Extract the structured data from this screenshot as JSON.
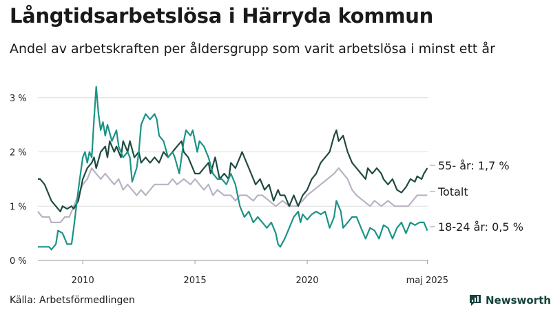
{
  "title": "Långtidsarbetslösa i Härryda kommun",
  "subtitle": "Andel av arbetskraften per åldersgrupp som varit arbetslösa i minst ett år",
  "source": "Källa: Arbetsförmedlingen",
  "brand": {
    "name": "Newsworthy",
    "icon": "newsworthy-chart-icon",
    "color": "#16423d"
  },
  "chart_data": {
    "type": "line",
    "x_unit": "year",
    "xlim": [
      2008.0,
      2025.4
    ],
    "ylim": [
      0,
      3.2
    ],
    "y_ticks": [
      {
        "value": 0,
        "label": "0 %"
      },
      {
        "value": 1,
        "label": "1 %"
      },
      {
        "value": 2,
        "label": "2 %"
      },
      {
        "value": 3,
        "label": "3 %"
      }
    ],
    "x_ticks": [
      {
        "value": 2010,
        "label": "2010"
      },
      {
        "value": 2015,
        "label": "2015"
      },
      {
        "value": 2020,
        "label": "2020"
      },
      {
        "value": 2025.35,
        "label": "maj 2025"
      }
    ],
    "grid": "horizontal",
    "series": [
      {
        "name": "Totalt",
        "end_label": "Totalt",
        "color": "#b9b2c4",
        "points": [
          [
            2008.0,
            0.9
          ],
          [
            2008.2,
            0.8
          ],
          [
            2008.5,
            0.8
          ],
          [
            2008.6,
            0.7
          ],
          [
            2009.0,
            0.7
          ],
          [
            2009.2,
            0.8
          ],
          [
            2009.4,
            0.8
          ],
          [
            2009.6,
            1.0
          ],
          [
            2009.8,
            1.2
          ],
          [
            2010.0,
            1.4
          ],
          [
            2010.2,
            1.5
          ],
          [
            2010.4,
            1.7
          ],
          [
            2010.6,
            1.6
          ],
          [
            2010.8,
            1.5
          ],
          [
            2011.0,
            1.6
          ],
          [
            2011.2,
            1.5
          ],
          [
            2011.4,
            1.4
          ],
          [
            2011.6,
            1.5
          ],
          [
            2011.8,
            1.3
          ],
          [
            2012.0,
            1.4
          ],
          [
            2012.2,
            1.3
          ],
          [
            2012.4,
            1.2
          ],
          [
            2012.6,
            1.3
          ],
          [
            2012.8,
            1.2
          ],
          [
            2013.0,
            1.3
          ],
          [
            2013.2,
            1.4
          ],
          [
            2013.5,
            1.4
          ],
          [
            2013.8,
            1.4
          ],
          [
            2014.0,
            1.5
          ],
          [
            2014.2,
            1.4
          ],
          [
            2014.5,
            1.5
          ],
          [
            2014.8,
            1.4
          ],
          [
            2015.0,
            1.5
          ],
          [
            2015.2,
            1.4
          ],
          [
            2015.4,
            1.3
          ],
          [
            2015.6,
            1.4
          ],
          [
            2015.8,
            1.2
          ],
          [
            2016.0,
            1.3
          ],
          [
            2016.3,
            1.2
          ],
          [
            2016.6,
            1.2
          ],
          [
            2016.8,
            1.1
          ],
          [
            2017.0,
            1.2
          ],
          [
            2017.3,
            1.2
          ],
          [
            2017.6,
            1.1
          ],
          [
            2017.8,
            1.2
          ],
          [
            2018.0,
            1.2
          ],
          [
            2018.3,
            1.1
          ],
          [
            2018.6,
            1.0
          ],
          [
            2018.9,
            1.1
          ],
          [
            2019.2,
            1.0
          ],
          [
            2019.5,
            1.0
          ],
          [
            2019.8,
            1.1
          ],
          [
            2020.0,
            1.2
          ],
          [
            2020.3,
            1.3
          ],
          [
            2020.6,
            1.4
          ],
          [
            2020.9,
            1.5
          ],
          [
            2021.2,
            1.6
          ],
          [
            2021.4,
            1.7
          ],
          [
            2021.6,
            1.6
          ],
          [
            2021.8,
            1.5
          ],
          [
            2022.0,
            1.3
          ],
          [
            2022.2,
            1.2
          ],
          [
            2022.5,
            1.1
          ],
          [
            2022.8,
            1.0
          ],
          [
            2023.0,
            1.1
          ],
          [
            2023.3,
            1.0
          ],
          [
            2023.6,
            1.1
          ],
          [
            2023.9,
            1.0
          ],
          [
            2024.2,
            1.0
          ],
          [
            2024.5,
            1.0
          ],
          [
            2024.7,
            1.1
          ],
          [
            2024.9,
            1.2
          ],
          [
            2025.2,
            1.2
          ],
          [
            2025.35,
            1.2
          ]
        ]
      },
      {
        "name": "55- år",
        "end_label": "55- år: 1,7 %",
        "color": "#1f4a40",
        "points": [
          [
            2008.0,
            1.5
          ],
          [
            2008.1,
            1.5
          ],
          [
            2008.3,
            1.4
          ],
          [
            2008.4,
            1.3
          ],
          [
            2008.5,
            1.2
          ],
          [
            2008.6,
            1.1
          ],
          [
            2008.8,
            1.0
          ],
          [
            2009.0,
            0.9
          ],
          [
            2009.1,
            1.0
          ],
          [
            2009.3,
            0.95
          ],
          [
            2009.5,
            1.0
          ],
          [
            2009.6,
            0.95
          ],
          [
            2009.8,
            1.1
          ],
          [
            2010.0,
            1.5
          ],
          [
            2010.2,
            1.7
          ],
          [
            2010.4,
            1.8
          ],
          [
            2010.5,
            1.9
          ],
          [
            2010.6,
            1.7
          ],
          [
            2010.8,
            2.0
          ],
          [
            2011.0,
            2.1
          ],
          [
            2011.1,
            1.9
          ],
          [
            2011.2,
            2.2
          ],
          [
            2011.4,
            2.0
          ],
          [
            2011.5,
            2.1
          ],
          [
            2011.7,
            1.9
          ],
          [
            2011.8,
            2.2
          ],
          [
            2012.0,
            2.0
          ],
          [
            2012.1,
            2.2
          ],
          [
            2012.3,
            1.9
          ],
          [
            2012.5,
            2.0
          ],
          [
            2012.6,
            1.8
          ],
          [
            2012.8,
            1.9
          ],
          [
            2013.0,
            1.8
          ],
          [
            2013.2,
            1.9
          ],
          [
            2013.4,
            1.8
          ],
          [
            2013.6,
            2.0
          ],
          [
            2013.8,
            1.9
          ],
          [
            2014.0,
            2.0
          ],
          [
            2014.2,
            2.1
          ],
          [
            2014.4,
            2.2
          ],
          [
            2014.5,
            2.0
          ],
          [
            2014.7,
            1.9
          ],
          [
            2014.9,
            1.7
          ],
          [
            2015.0,
            1.6
          ],
          [
            2015.2,
            1.6
          ],
          [
            2015.4,
            1.7
          ],
          [
            2015.6,
            1.8
          ],
          [
            2015.7,
            1.6
          ],
          [
            2015.9,
            1.9
          ],
          [
            2016.1,
            1.5
          ],
          [
            2016.3,
            1.6
          ],
          [
            2016.5,
            1.5
          ],
          [
            2016.6,
            1.8
          ],
          [
            2016.8,
            1.7
          ],
          [
            2017.0,
            1.9
          ],
          [
            2017.1,
            2.0
          ],
          [
            2017.3,
            1.8
          ],
          [
            2017.5,
            1.6
          ],
          [
            2017.7,
            1.4
          ],
          [
            2017.9,
            1.5
          ],
          [
            2018.1,
            1.3
          ],
          [
            2018.3,
            1.4
          ],
          [
            2018.5,
            1.1
          ],
          [
            2018.7,
            1.3
          ],
          [
            2018.8,
            1.2
          ],
          [
            2019.0,
            1.2
          ],
          [
            2019.2,
            1.0
          ],
          [
            2019.4,
            1.2
          ],
          [
            2019.6,
            1.0
          ],
          [
            2019.8,
            1.2
          ],
          [
            2020.0,
            1.3
          ],
          [
            2020.2,
            1.5
          ],
          [
            2020.4,
            1.6
          ],
          [
            2020.6,
            1.8
          ],
          [
            2020.8,
            1.9
          ],
          [
            2021.0,
            2.0
          ],
          [
            2021.2,
            2.3
          ],
          [
            2021.3,
            2.4
          ],
          [
            2021.4,
            2.2
          ],
          [
            2021.6,
            2.3
          ],
          [
            2021.8,
            2.0
          ],
          [
            2022.0,
            1.8
          ],
          [
            2022.2,
            1.7
          ],
          [
            2022.4,
            1.6
          ],
          [
            2022.6,
            1.5
          ],
          [
            2022.7,
            1.7
          ],
          [
            2022.9,
            1.6
          ],
          [
            2023.1,
            1.7
          ],
          [
            2023.3,
            1.6
          ],
          [
            2023.4,
            1.5
          ],
          [
            2023.6,
            1.4
          ],
          [
            2023.8,
            1.5
          ],
          [
            2024.0,
            1.3
          ],
          [
            2024.2,
            1.25
          ],
          [
            2024.4,
            1.35
          ],
          [
            2024.6,
            1.5
          ],
          [
            2024.8,
            1.45
          ],
          [
            2024.9,
            1.55
          ],
          [
            2025.1,
            1.5
          ],
          [
            2025.2,
            1.6
          ],
          [
            2025.35,
            1.7
          ]
        ]
      },
      {
        "name": "18-24 år",
        "end_label": "18-24 år: 0,5 %",
        "color": "#1a9385",
        "points": [
          [
            2008.0,
            0.25
          ],
          [
            2008.5,
            0.25
          ],
          [
            2008.6,
            0.2
          ],
          [
            2008.8,
            0.3
          ],
          [
            2008.9,
            0.55
          ],
          [
            2009.1,
            0.5
          ],
          [
            2009.3,
            0.3
          ],
          [
            2009.5,
            0.3
          ],
          [
            2009.6,
            0.6
          ],
          [
            2009.8,
            1.3
          ],
          [
            2009.9,
            1.6
          ],
          [
            2010.0,
            1.9
          ],
          [
            2010.1,
            2.0
          ],
          [
            2010.2,
            1.8
          ],
          [
            2010.3,
            2.0
          ],
          [
            2010.4,
            1.9
          ],
          [
            2010.5,
            2.6
          ],
          [
            2010.6,
            3.2
          ],
          [
            2010.7,
            2.7
          ],
          [
            2010.8,
            2.4
          ],
          [
            2010.9,
            2.55
          ],
          [
            2011.0,
            2.3
          ],
          [
            2011.1,
            2.5
          ],
          [
            2011.3,
            2.2
          ],
          [
            2011.5,
            2.4
          ],
          [
            2011.6,
            2.1
          ],
          [
            2011.8,
            1.9
          ],
          [
            2012.0,
            2.0
          ],
          [
            2012.1,
            1.9
          ],
          [
            2012.2,
            1.45
          ],
          [
            2012.4,
            1.7
          ],
          [
            2012.5,
            2.0
          ],
          [
            2012.6,
            2.5
          ],
          [
            2012.8,
            2.7
          ],
          [
            2013.0,
            2.6
          ],
          [
            2013.2,
            2.7
          ],
          [
            2013.3,
            2.6
          ],
          [
            2013.4,
            2.3
          ],
          [
            2013.6,
            2.2
          ],
          [
            2013.8,
            1.9
          ],
          [
            2014.0,
            2.0
          ],
          [
            2014.1,
            1.9
          ],
          [
            2014.3,
            1.6
          ],
          [
            2014.5,
            2.2
          ],
          [
            2014.6,
            2.4
          ],
          [
            2014.8,
            2.3
          ],
          [
            2014.9,
            2.4
          ],
          [
            2015.1,
            2.0
          ],
          [
            2015.2,
            2.2
          ],
          [
            2015.4,
            2.1
          ],
          [
            2015.6,
            1.9
          ],
          [
            2015.8,
            1.6
          ],
          [
            2016.0,
            1.5
          ],
          [
            2016.2,
            1.5
          ],
          [
            2016.4,
            1.4
          ],
          [
            2016.6,
            1.6
          ],
          [
            2016.8,
            1.4
          ],
          [
            2017.0,
            1.0
          ],
          [
            2017.2,
            0.8
          ],
          [
            2017.4,
            0.9
          ],
          [
            2017.6,
            0.7
          ],
          [
            2017.8,
            0.8
          ],
          [
            2018.0,
            0.7
          ],
          [
            2018.2,
            0.6
          ],
          [
            2018.4,
            0.7
          ],
          [
            2018.6,
            0.5
          ],
          [
            2018.7,
            0.3
          ],
          [
            2018.8,
            0.25
          ],
          [
            2019.0,
            0.4
          ],
          [
            2019.2,
            0.6
          ],
          [
            2019.4,
            0.8
          ],
          [
            2019.6,
            0.9
          ],
          [
            2019.7,
            0.7
          ],
          [
            2019.8,
            0.85
          ],
          [
            2020.0,
            0.75
          ],
          [
            2020.2,
            0.85
          ],
          [
            2020.4,
            0.9
          ],
          [
            2020.6,
            0.85
          ],
          [
            2020.8,
            0.9
          ],
          [
            2021.0,
            0.6
          ],
          [
            2021.2,
            0.8
          ],
          [
            2021.3,
            1.1
          ],
          [
            2021.5,
            0.9
          ],
          [
            2021.6,
            0.6
          ],
          [
            2021.8,
            0.7
          ],
          [
            2022.0,
            0.8
          ],
          [
            2022.2,
            0.8
          ],
          [
            2022.4,
            0.6
          ],
          [
            2022.6,
            0.4
          ],
          [
            2022.8,
            0.6
          ],
          [
            2023.0,
            0.55
          ],
          [
            2023.2,
            0.4
          ],
          [
            2023.4,
            0.65
          ],
          [
            2023.6,
            0.6
          ],
          [
            2023.8,
            0.4
          ],
          [
            2024.0,
            0.6
          ],
          [
            2024.2,
            0.7
          ],
          [
            2024.4,
            0.5
          ],
          [
            2024.6,
            0.7
          ],
          [
            2024.8,
            0.65
          ],
          [
            2025.0,
            0.7
          ],
          [
            2025.2,
            0.7
          ],
          [
            2025.35,
            0.55
          ]
        ]
      }
    ]
  }
}
